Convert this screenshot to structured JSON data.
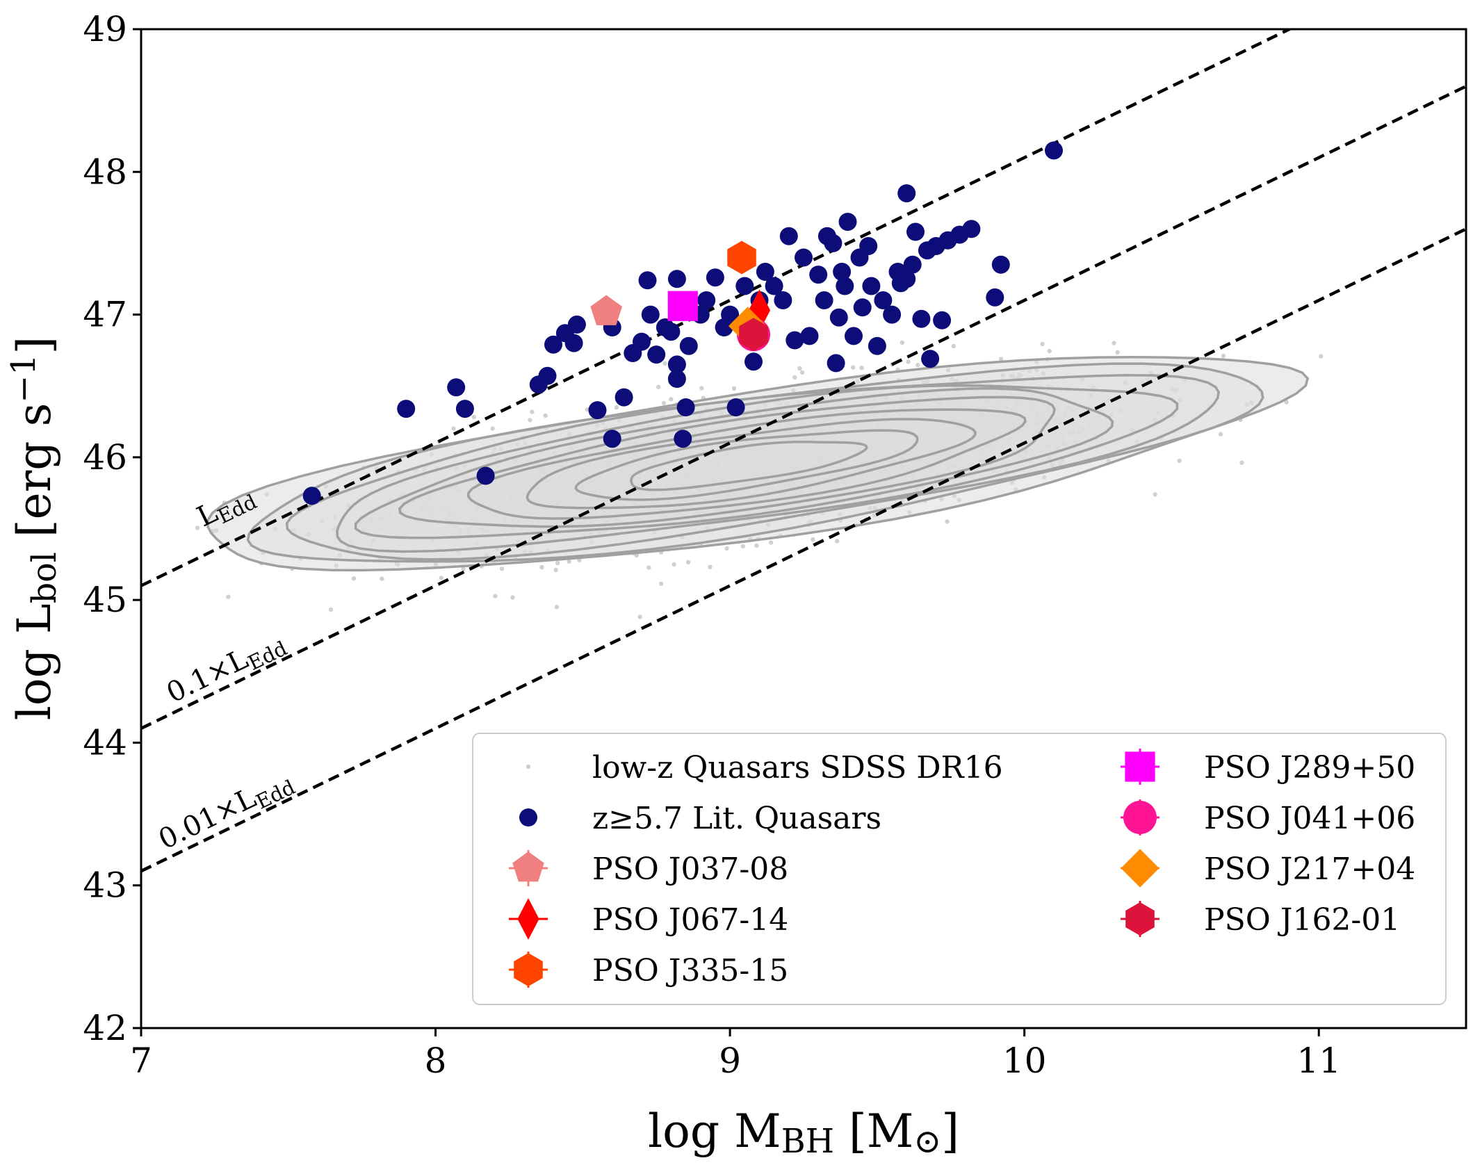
{
  "chart_data": {
    "type": "scatter",
    "title": "",
    "xlabel": {
      "main": "log M",
      "sub": "BH",
      "rest": " [M",
      "sun": "⊙",
      "close": "]"
    },
    "ylabel": {
      "main": "log L",
      "sub": "bol",
      "rest": " [erg s",
      "sup": "−1",
      "close": "]"
    },
    "xlim": [
      7,
      11.5
    ],
    "ylim": [
      42,
      49
    ],
    "xticks": [
      "7",
      "8",
      "9",
      "10",
      "11"
    ],
    "yticks": [
      "42",
      "43",
      "44",
      "45",
      "46",
      "47",
      "48",
      "49"
    ],
    "eddington_lines": [
      {
        "name": "L_Edd",
        "offset": 38.1,
        "label_main": "L",
        "label_sub": "Edd"
      },
      {
        "name": "0.1 L_Edd",
        "offset": 37.1,
        "label_main": "0.1×L",
        "label_sub": "Edd"
      },
      {
        "name": "0.01 L_Edd",
        "offset": 36.1,
        "label_main": "0.01×L",
        "label_sub": "Edd"
      }
    ],
    "lowz_quasars": {
      "name": "low-z Quasars SDSS DR16",
      "center": [
        9.05,
        45.95
      ],
      "contour_levels": [
        {
          "a": 1.85,
          "b": 0.52
        },
        {
          "a": 1.72,
          "b": 0.48
        },
        {
          "a": 1.58,
          "b": 0.44
        },
        {
          "a": 1.42,
          "b": 0.4
        },
        {
          "a": 1.26,
          "b": 0.36
        },
        {
          "a": 1.1,
          "b": 0.32
        },
        {
          "a": 0.93,
          "b": 0.27
        },
        {
          "a": 0.76,
          "b": 0.22
        },
        {
          "a": 0.58,
          "b": 0.17
        },
        {
          "a": 0.4,
          "b": 0.12
        }
      ],
      "contour_slope": 0.29
    },
    "literature_quasars": {
      "name": "z≥5.7 Lit. Quasars",
      "points": [
        [
          7.58,
          45.73
        ],
        [
          7.9,
          46.34
        ],
        [
          8.07,
          46.49
        ],
        [
          8.1,
          46.34
        ],
        [
          8.17,
          45.87
        ],
        [
          8.35,
          46.51
        ],
        [
          8.38,
          46.57
        ],
        [
          8.4,
          46.79
        ],
        [
          8.44,
          46.87
        ],
        [
          8.47,
          46.8
        ],
        [
          8.48,
          46.93
        ],
        [
          8.55,
          46.33
        ],
        [
          8.6,
          46.13
        ],
        [
          8.64,
          46.42
        ],
        [
          8.6,
          46.91
        ],
        [
          8.67,
          46.73
        ],
        [
          8.7,
          46.81
        ],
        [
          8.72,
          47.24
        ],
        [
          8.73,
          47.0
        ],
        [
          8.75,
          46.72
        ],
        [
          8.78,
          46.91
        ],
        [
          8.8,
          46.88
        ],
        [
          8.82,
          46.65
        ],
        [
          8.82,
          46.55
        ],
        [
          8.85,
          46.35
        ],
        [
          8.84,
          46.13
        ],
        [
          8.82,
          47.25
        ],
        [
          8.86,
          46.78
        ],
        [
          8.9,
          47.0
        ],
        [
          8.92,
          47.1
        ],
        [
          8.95,
          47.26
        ],
        [
          8.98,
          46.91
        ],
        [
          9.0,
          47.0
        ],
        [
          9.02,
          46.35
        ],
        [
          9.05,
          47.2
        ],
        [
          9.1,
          47.1
        ],
        [
          9.08,
          46.67
        ],
        [
          9.12,
          47.3
        ],
        [
          9.15,
          47.2
        ],
        [
          9.18,
          47.1
        ],
        [
          9.2,
          47.55
        ],
        [
          9.22,
          46.82
        ],
        [
          9.25,
          47.4
        ],
        [
          9.27,
          46.85
        ],
        [
          9.3,
          47.28
        ],
        [
          9.32,
          47.1
        ],
        [
          9.33,
          47.55
        ],
        [
          9.35,
          47.5
        ],
        [
          9.36,
          46.66
        ],
        [
          9.37,
          46.98
        ],
        [
          9.38,
          47.3
        ],
        [
          9.39,
          47.2
        ],
        [
          9.4,
          47.65
        ],
        [
          9.42,
          46.85
        ],
        [
          9.44,
          47.4
        ],
        [
          9.45,
          47.05
        ],
        [
          9.47,
          47.48
        ],
        [
          9.48,
          47.2
        ],
        [
          9.5,
          46.78
        ],
        [
          9.52,
          47.1
        ],
        [
          9.55,
          47.0
        ],
        [
          9.57,
          47.3
        ],
        [
          9.58,
          47.22
        ],
        [
          9.6,
          47.25
        ],
        [
          9.62,
          47.35
        ],
        [
          9.63,
          47.58
        ],
        [
          9.6,
          47.85
        ],
        [
          9.65,
          46.97
        ],
        [
          9.67,
          47.45
        ],
        [
          9.68,
          46.69
        ],
        [
          9.7,
          47.48
        ],
        [
          9.72,
          46.96
        ],
        [
          9.74,
          47.52
        ],
        [
          9.78,
          47.56
        ],
        [
          9.82,
          47.6
        ],
        [
          9.9,
          47.12
        ],
        [
          9.92,
          47.35
        ],
        [
          10.1,
          48.15
        ]
      ]
    },
    "pso_quasars": [
      {
        "name": "PSO J037-08",
        "x": 8.58,
        "y": 47.02,
        "marker": "pentagon",
        "color": "#F08080"
      },
      {
        "name": "PSO J067-14",
        "x": 9.1,
        "y": 47.03,
        "marker": "thin-diamond",
        "color": "#FF0000"
      },
      {
        "name": "PSO J335-15",
        "x": 9.04,
        "y": 47.4,
        "marker": "hexagon",
        "color": "#FF4500"
      },
      {
        "name": "PSO J289+50",
        "x": 8.84,
        "y": 47.06,
        "marker": "square",
        "color": "#FF00FF"
      },
      {
        "name": "PSO J041+06",
        "x": 9.08,
        "y": 46.86,
        "marker": "circle",
        "color": "#FF1493"
      },
      {
        "name": "PSO J217+04",
        "x": 9.06,
        "y": 46.92,
        "marker": "diamond",
        "color": "#FF8C00"
      },
      {
        "name": "PSO J162-01",
        "x": 9.08,
        "y": 46.86,
        "marker": "hexagon",
        "color": "#DC143C"
      }
    ],
    "legend": {
      "placement": "lower-right",
      "columns": [
        [
          "low-z Quasars SDSS DR16",
          "z≥5.7 Lit. Quasars",
          "PSO J037-08",
          "PSO J067-14",
          "PSO J335-15"
        ],
        [
          "PSO J289+50",
          "PSO J041+06",
          "PSO J217+04",
          "PSO J162-01"
        ]
      ]
    },
    "colors": {
      "lit": "#0D0D7A",
      "cloud": "#d0d0d0",
      "contour_fill": "#dcdcdc",
      "contour_line": "#a0a0a0"
    }
  }
}
